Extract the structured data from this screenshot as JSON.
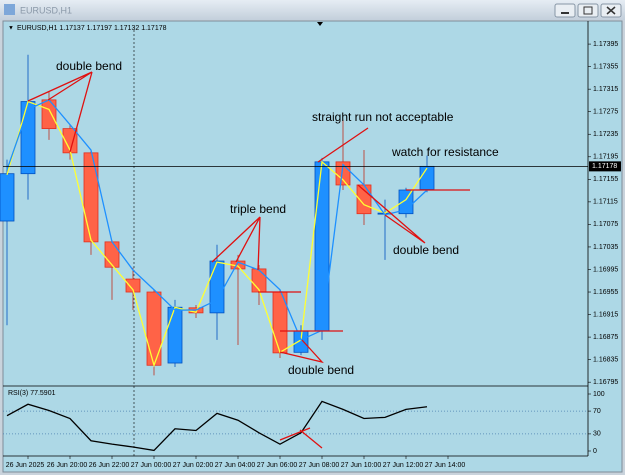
{
  "window": {
    "title": "EURUSD,H1"
  },
  "chart_data": [
    {
      "type": "candlestick",
      "title": "EURUSD,H1",
      "categories": [
        null,
        "26 Jun 2025",
        null,
        "26 Jun 20:00",
        null,
        "26 Jun 22:00",
        null,
        "27 Jun 00:00",
        null,
        "27 Jun 02:00",
        null,
        "27 Jun 04:00",
        null,
        "27 Jun 06:00",
        null,
        "27 Jun 08:00",
        null,
        "27 Jun 10:00",
        null,
        "27 Jun 12:00",
        null,
        "27 Jun 14:00"
      ],
      "open": [
        1.17081,
        1.17165,
        1.17296,
        1.17245,
        1.17202,
        1.17044,
        1.16978,
        1.16955,
        1.16829,
        1.16927,
        1.16918,
        1.1701,
        1.16996,
        1.16955,
        1.16848,
        1.16886,
        1.17186,
        1.17145,
        1.17094,
        1.17094,
        1.17137,
        null
      ],
      "high": [
        1.1719,
        1.17376,
        1.17311,
        1.17252,
        1.17207,
        1.17047,
        1.16998,
        1.16959,
        1.16941,
        1.16932,
        1.17039,
        1.17021,
        1.17003,
        1.16959,
        1.16896,
        1.17193,
        1.17261,
        1.17207,
        1.17119,
        1.1714,
        1.17197,
        null
      ],
      "low": [
        1.16896,
        1.17119,
        1.17225,
        1.1719,
        1.17021,
        1.16941,
        1.16923,
        1.16807,
        1.16822,
        1.16909,
        1.1687,
        1.16861,
        1.16932,
        1.16838,
        1.16843,
        1.1687,
        1.17136,
        1.17074,
        1.17012,
        1.17087,
        1.17132,
        null
      ],
      "close": [
        1.17165,
        1.17293,
        1.17245,
        1.17202,
        1.17044,
        1.16999,
        1.16955,
        1.16825,
        1.16928,
        1.16918,
        1.1701,
        1.16996,
        1.16955,
        1.16847,
        1.16886,
        1.17186,
        1.17145,
        1.17094,
        1.17095,
        1.17136,
        1.17178,
        null
      ],
      "up_color": "#1e90ff",
      "down_color": "#ff6347",
      "series": [
        {
          "color": "#ffff33",
          "values": [
            1.17163,
            1.17293,
            1.17279,
            1.17207,
            1.17047,
            1.17003,
            1.16959,
            1.16825,
            1.16928,
            1.16919,
            1.17008,
            1.17001,
            1.16959,
            1.16848,
            1.1687,
            1.17186,
            1.17154,
            1.1711,
            1.17095,
            1.17119,
            1.17175,
            null
          ]
        },
        {
          "color": "#1e90ff",
          "values": [
            1.17172,
            1.17279,
            1.17296,
            1.17252,
            1.17207,
            1.17044,
            1.16994,
            1.16959,
            1.16923,
            1.16923,
            1.16941,
            1.17008,
            1.16994,
            1.16959,
            1.1687,
            1.16887,
            1.17181,
            1.17145,
            1.17092,
            1.17101,
            1.17136,
            null
          ]
        }
      ],
      "ylim": [
        1.1679,
        1.1742
      ],
      "yticks": [
        1.16795,
        1.16835,
        1.16875,
        1.16915,
        1.16955,
        1.16995,
        1.17035,
        1.17075,
        1.17115,
        1.17155,
        1.17195,
        1.17235,
        1.17275,
        1.17315,
        1.17355,
        1.17395
      ],
      "annotations": [
        "double bend",
        "straight run not acceptable",
        "watch for resistance",
        "triple bend",
        "double bend",
        "double bend"
      ]
    },
    {
      "type": "line",
      "title": "RSI(3)",
      "values": [
        62,
        82,
        71,
        57,
        18,
        12,
        7,
        1,
        39,
        36,
        66,
        54,
        32,
        12,
        32,
        87,
        73,
        57,
        59,
        73,
        77.5901,
        null
      ],
      "color": "#000000",
      "ylim": [
        0,
        100
      ],
      "yticks": [
        0,
        30,
        70,
        100
      ],
      "levels_dotted": true
    }
  ]
}
